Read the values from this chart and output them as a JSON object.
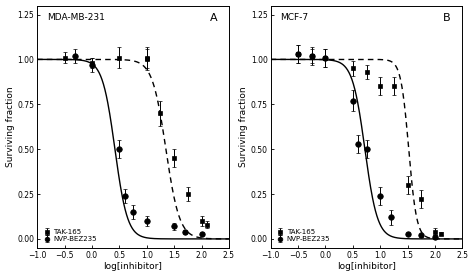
{
  "panel_A": {
    "title": "MDA-MB-231",
    "label": "A",
    "TAK165": {
      "x": [
        -0.5,
        0.0,
        0.5,
        1.0,
        1.0,
        1.25,
        1.5,
        1.75,
        2.0,
        2.1
      ],
      "y": [
        1.01,
        0.98,
        1.01,
        1.01,
        1.0,
        0.7,
        0.45,
        0.25,
        0.1,
        0.08
      ],
      "yerr": [
        0.03,
        0.03,
        0.06,
        0.06,
        0.06,
        0.07,
        0.05,
        0.04,
        0.03,
        0.02
      ],
      "ic50": 1.35,
      "hill": 3.5
    },
    "BEZ235": {
      "x": [
        -0.3,
        0.0,
        0.5,
        0.6,
        0.75,
        1.0,
        1.5,
        1.7,
        2.0
      ],
      "y": [
        1.02,
        0.97,
        0.5,
        0.24,
        0.15,
        0.1,
        0.07,
        0.04,
        0.03
      ],
      "yerr": [
        0.04,
        0.04,
        0.05,
        0.04,
        0.04,
        0.03,
        0.02,
        0.01,
        0.01
      ],
      "ic50": 0.42,
      "hill": 3.8
    }
  },
  "panel_B": {
    "title": "MCF-7",
    "label": "B",
    "TAK165": {
      "x": [
        -0.5,
        -0.25,
        0.0,
        0.5,
        0.75,
        1.0,
        1.25,
        1.5,
        1.75,
        2.0,
        2.1
      ],
      "y": [
        1.03,
        1.02,
        1.01,
        0.95,
        0.93,
        0.85,
        0.85,
        0.3,
        0.22,
        0.04,
        0.03
      ],
      "yerr": [
        0.05,
        0.04,
        0.05,
        0.04,
        0.04,
        0.05,
        0.05,
        0.05,
        0.05,
        0.02,
        0.01
      ],
      "ic50": 1.52,
      "hill": 6.0
    },
    "BEZ235": {
      "x": [
        -0.5,
        -0.25,
        0.0,
        0.5,
        0.6,
        0.75,
        1.0,
        1.2,
        1.5,
        1.75,
        2.0
      ],
      "y": [
        1.03,
        1.02,
        1.01,
        0.77,
        0.53,
        0.5,
        0.24,
        0.12,
        0.03,
        0.02,
        0.01
      ],
      "yerr": [
        0.05,
        0.05,
        0.05,
        0.06,
        0.05,
        0.05,
        0.05,
        0.04,
        0.01,
        0.01,
        0.01
      ],
      "ic50": 0.72,
      "hill": 3.8
    }
  },
  "xlim": [
    -1.0,
    2.5
  ],
  "ylim": [
    -0.05,
    1.3
  ],
  "yticks": [
    0.0,
    0.25,
    0.5,
    0.75,
    1.0,
    1.25
  ],
  "xticks": [
    -1.0,
    -0.5,
    0.0,
    0.5,
    1.0,
    1.5,
    2.0,
    2.5
  ],
  "xlabel": "log[inhibitor]",
  "ylabel": "Surviving fraction",
  "legend_TAK": "TAK-165",
  "legend_BEZ": "NVP-BEZ235",
  "marker_TAK": "s",
  "marker_BEZ": "o",
  "color": "#000000",
  "line_solid": "-",
  "line_dash": "--"
}
